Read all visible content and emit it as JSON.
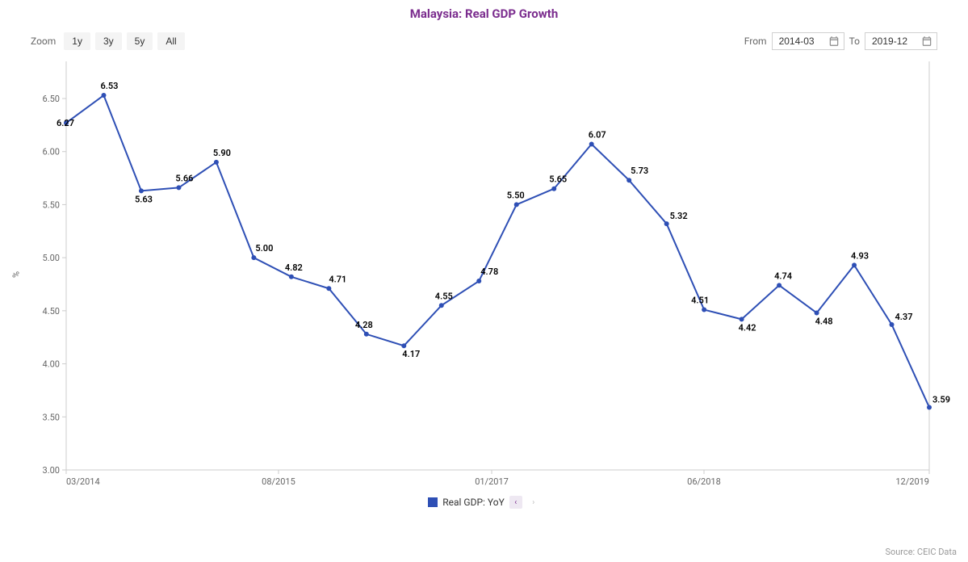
{
  "title": "Malaysia: Real GDP Growth",
  "title_color": "#7b2d8e",
  "toolbar": {
    "zoom_label": "Zoom",
    "zoom_buttons": [
      "1y",
      "3y",
      "5y",
      "All"
    ],
    "from_label": "From",
    "to_label": "To",
    "from_value": "2014-03",
    "to_value": "2019-12"
  },
  "chart": {
    "type": "line",
    "y_axis_label": "%",
    "ylim": [
      3.0,
      6.85
    ],
    "ytick_step": 0.5,
    "yticks": [
      "3.00",
      "3.50",
      "4.00",
      "4.50",
      "5.00",
      "5.50",
      "6.00",
      "6.50"
    ],
    "x_labels": [
      "03/2014",
      "08/2015",
      "01/2017",
      "06/2018",
      "12/2019"
    ],
    "line_color": "#2e4fb5",
    "line_width": 2,
    "marker_radius": 3,
    "background_color": "#ffffff",
    "axis_color": "#cccccc",
    "tick_font_size": 11,
    "label_font_size": 11,
    "series_name": "Real GDP: YoY",
    "data": [
      {
        "i": 0,
        "v": 6.27,
        "lbl": "6.27",
        "ox": -12,
        "oy": 4
      },
      {
        "i": 1,
        "v": 6.53,
        "lbl": "6.53",
        "ox": -4,
        "oy": -8
      },
      {
        "i": 2,
        "v": 5.63,
        "lbl": "5.63",
        "ox": -8,
        "oy": 14
      },
      {
        "i": 3,
        "v": 5.66,
        "lbl": "5.66",
        "ox": -4,
        "oy": -8
      },
      {
        "i": 4,
        "v": 5.9,
        "lbl": "5.90",
        "ox": -4,
        "oy": -8
      },
      {
        "i": 5,
        "v": 5.0,
        "lbl": "5.00",
        "ox": 2,
        "oy": -8
      },
      {
        "i": 6,
        "v": 4.82,
        "lbl": "4.82",
        "ox": -8,
        "oy": -8
      },
      {
        "i": 7,
        "v": 4.71,
        "lbl": "4.71",
        "ox": 0,
        "oy": -8
      },
      {
        "i": 8,
        "v": 4.28,
        "lbl": "4.28",
        "ox": -14,
        "oy": -8
      },
      {
        "i": 9,
        "v": 4.17,
        "lbl": "4.17",
        "ox": -2,
        "oy": 14
      },
      {
        "i": 10,
        "v": 4.55,
        "lbl": "4.55",
        "ox": -8,
        "oy": -8
      },
      {
        "i": 11,
        "v": 4.78,
        "lbl": "4.78",
        "ox": 2,
        "oy": -8
      },
      {
        "i": 12,
        "v": 5.5,
        "lbl": "5.50",
        "ox": -12,
        "oy": -8
      },
      {
        "i": 13,
        "v": 5.65,
        "lbl": "5.65",
        "ox": -6,
        "oy": -8
      },
      {
        "i": 14,
        "v": 6.07,
        "lbl": "6.07",
        "ox": -4,
        "oy": -8
      },
      {
        "i": 15,
        "v": 5.73,
        "lbl": "5.73",
        "ox": 2,
        "oy": -8
      },
      {
        "i": 16,
        "v": 5.32,
        "lbl": "5.32",
        "ox": 4,
        "oy": -6
      },
      {
        "i": 17,
        "v": 4.51,
        "lbl": "4.51",
        "ox": -16,
        "oy": -8
      },
      {
        "i": 18,
        "v": 4.42,
        "lbl": "4.42",
        "ox": -4,
        "oy": 14
      },
      {
        "i": 19,
        "v": 4.74,
        "lbl": "4.74",
        "ox": -6,
        "oy": -8
      },
      {
        "i": 20,
        "v": 4.48,
        "lbl": "4.48",
        "ox": -2,
        "oy": 14
      },
      {
        "i": 21,
        "v": 4.93,
        "lbl": "4.93",
        "ox": -4,
        "oy": -8
      },
      {
        "i": 22,
        "v": 4.37,
        "lbl": "4.37",
        "ox": 4,
        "oy": -6
      },
      {
        "i": 23,
        "v": 3.59,
        "lbl": "3.59",
        "ox": 4,
        "oy": -6
      }
    ]
  },
  "legend": {
    "swatch_color": "#2e4fb5",
    "label": "Real GDP: YoY"
  },
  "source": "Source: CEIC Data"
}
